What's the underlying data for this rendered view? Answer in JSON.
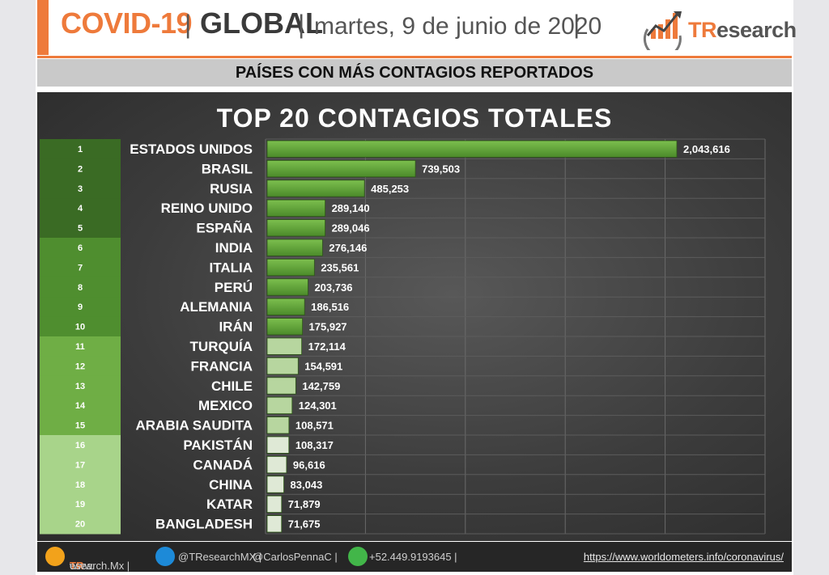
{
  "header": {
    "covid_label": "COVID-19",
    "sep": "|",
    "scope_label": "GLOBAL",
    "date_label": "martes, 9 de junio de 2020",
    "brand_prefix": "TR",
    "brand_suffix": "esearch"
  },
  "subtitle": "PAÍSES CON MÁS CONTAGIOS REPORTADOS",
  "colors": {
    "accent": "#ee7a3b",
    "rank_groups": [
      "#3a6b24",
      "#4f8e2f",
      "#6fae45",
      "#a8d48a"
    ],
    "bar": "#5d9a38"
  },
  "chart_data": {
    "type": "bar",
    "orientation": "horizontal",
    "title": "TOP 20 CONTAGIOS TOTALES",
    "ranks": [
      "1",
      "2",
      "3",
      "4",
      "5",
      "6",
      "7",
      "8",
      "9",
      "10",
      "11",
      "12",
      "13",
      "14",
      "15",
      "16",
      "17",
      "18",
      "19",
      "20"
    ],
    "categories": [
      "ESTADOS UNIDOS",
      "BRASIL",
      "RUSIA",
      "REINO UNIDO",
      "ESPAÑA",
      "INDIA",
      "ITALIA",
      "PERÚ",
      "ALEMANIA",
      "IRÁN",
      "TURQUÍA",
      "FRANCIA",
      "CHILE",
      "MEXICO",
      "ARABIA SAUDITA",
      "PAKISTÁN",
      "CANADÁ",
      "CHINA",
      "KATAR",
      "BANGLADESH"
    ],
    "values": [
      2043616,
      739503,
      485253,
      289140,
      289046,
      276146,
      235561,
      203736,
      186516,
      175927,
      172114,
      154591,
      142759,
      124301,
      108571,
      108317,
      96616,
      83043,
      71879,
      71675
    ],
    "value_labels": [
      "2,043,616",
      "739,503",
      "485,253",
      "289,140",
      "289,046",
      "276,146",
      "235,561",
      "203,736",
      "186,516",
      "175,927",
      "172,114",
      "154,591",
      "142,759",
      "124,301",
      "108,571",
      "108,317",
      "96,616",
      "83,043",
      "71,879",
      "71,675"
    ],
    "xlim": [
      0,
      2500000
    ],
    "grid": true
  },
  "footer": {
    "website_prefix": "www.",
    "website_brand": "TR",
    "website_suffix": "esearch.Mx |",
    "twitter": "@TResearchMX |",
    "twitter2": "@CarlosPennaC |",
    "phone": "+52.449.9193645 |",
    "source": "https://www.worldometers.info/coronavirus/"
  }
}
